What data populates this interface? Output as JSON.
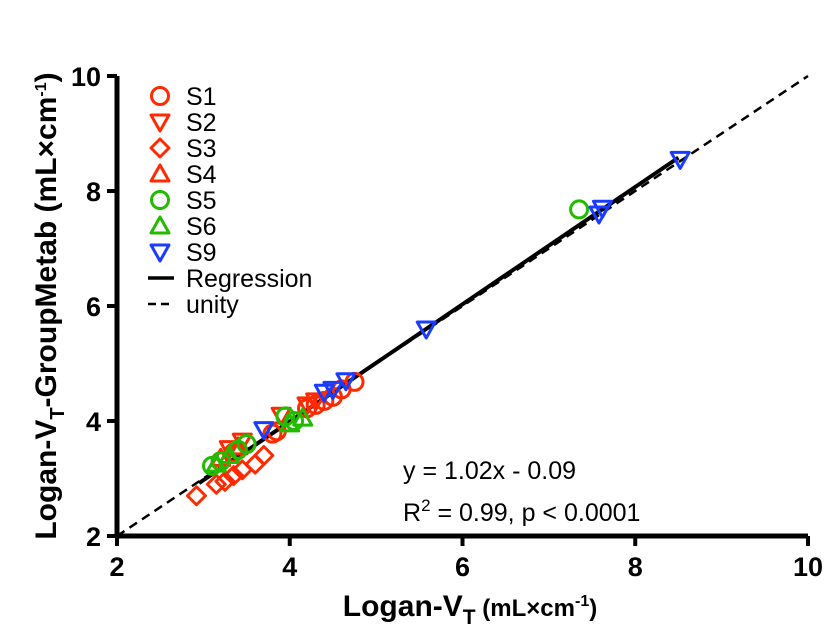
{
  "chart_data": {
    "type": "scatter",
    "xlabel": {
      "main": "Logan-V",
      "sub": "T",
      "units_pre": " (mL×cm",
      "units_sup": "-1",
      "units_post": ")"
    },
    "ylabel": {
      "main": "Logan-V",
      "sub": "T",
      "mid": "-GroupMetab (mL×cm",
      "sup": "-1",
      "post": ")"
    },
    "xlim": [
      2,
      10
    ],
    "ylim": [
      2,
      10
    ],
    "xticks": [
      "2",
      "4",
      "6",
      "8",
      "10"
    ],
    "yticks": [
      "2",
      "4",
      "6",
      "8",
      "10"
    ],
    "legend_position": "top-left",
    "series": [
      {
        "name": "S1",
        "marker": "circle",
        "color": "#ff2a00",
        "x": [
          3.2,
          3.35,
          3.5,
          3.8,
          3.85,
          4.2,
          4.3,
          4.4,
          4.5,
          4.6,
          4.75
        ],
        "y": [
          3.3,
          3.45,
          3.6,
          3.78,
          3.82,
          4.22,
          4.28,
          4.35,
          4.42,
          4.55,
          4.68
        ]
      },
      {
        "name": "S2",
        "marker": "triangle-down",
        "color": "#ff2a00",
        "x": [
          3.3,
          3.45,
          3.9,
          4.2,
          4.3
        ],
        "y": [
          3.52,
          3.65,
          4.1,
          4.28,
          4.35
        ]
      },
      {
        "name": "S3",
        "marker": "diamond",
        "color": "#ff2a00",
        "x": [
          2.92,
          3.15,
          3.25,
          3.35,
          3.45,
          3.6,
          3.7
        ],
        "y": [
          2.7,
          2.9,
          2.95,
          3.05,
          3.15,
          3.25,
          3.4
        ]
      },
      {
        "name": "S4",
        "marker": "triangle-up",
        "color": "#ff2a00",
        "x": [
          3.2,
          3.3,
          3.4
        ],
        "y": [
          3.35,
          3.4,
          3.55
        ]
      },
      {
        "name": "S5",
        "marker": "circle",
        "color": "#22bb00",
        "x": [
          3.1,
          3.2,
          3.4,
          3.5,
          3.95,
          4.05,
          7.35
        ],
        "y": [
          3.22,
          3.3,
          3.5,
          3.6,
          4.08,
          4.0,
          7.68
        ]
      },
      {
        "name": "S6",
        "marker": "triangle-up",
        "color": "#22bb00",
        "x": [
          3.15,
          3.3,
          4.0,
          4.15
        ],
        "y": [
          3.25,
          3.4,
          3.95,
          4.05
        ]
      },
      {
        "name": "S9",
        "marker": "triangle-down",
        "color": "#1a3cff",
        "x": [
          3.7,
          4.4,
          4.5,
          4.65,
          5.58,
          7.58,
          7.62,
          8.52
        ],
        "y": [
          3.85,
          4.5,
          4.55,
          4.7,
          5.6,
          7.6,
          7.7,
          8.55
        ]
      }
    ],
    "regression": {
      "name": "Regression",
      "slope": 1.02,
      "intercept": -0.09,
      "x_range": [
        2.95,
        8.5
      ],
      "color": "#000000"
    },
    "unity": {
      "name": "unity",
      "x_range": [
        2,
        10
      ],
      "color": "#000000"
    },
    "annotations": [
      {
        "text": "y = 1.02x - 0.09"
      },
      {
        "text_pre": "R",
        "text_sup": "2",
        "text_post": " = 0.99, p < 0.0001"
      }
    ]
  }
}
